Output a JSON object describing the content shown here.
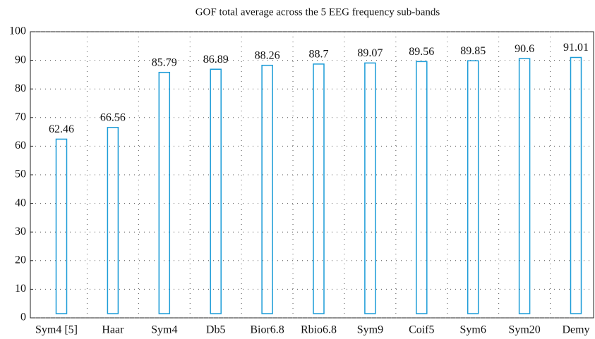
{
  "chart_data": {
    "type": "bar",
    "title": "GOF total average across the 5 EEG frequency sub-bands",
    "categories": [
      "Sym4 [5]",
      "Haar",
      "Sym4",
      "Db5",
      "Bior6.8",
      "Rbio6.8",
      "Sym9",
      "Coif5",
      "Sym6",
      "Sym20",
      "Demy"
    ],
    "values": [
      62.46,
      66.56,
      85.79,
      86.89,
      88.26,
      88.7,
      89.07,
      89.56,
      89.85,
      90.6,
      91.01
    ],
    "color": "#1a9bd7",
    "ylim": [
      0,
      100
    ],
    "yticks": [
      0,
      10,
      20,
      30,
      40,
      50,
      60,
      70,
      80,
      90,
      100
    ],
    "grid": true
  }
}
